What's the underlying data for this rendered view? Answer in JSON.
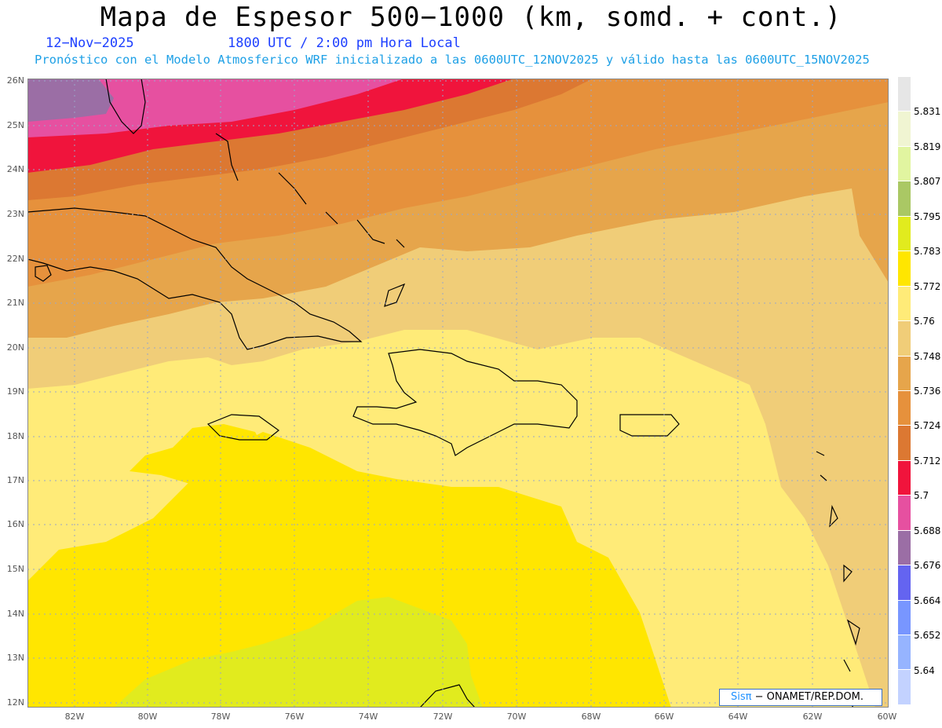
{
  "header": {
    "title": "Mapa de Espesor 500−1000 (km, somd. + cont.)",
    "date": "12−Nov−2025",
    "time": "1800 UTC / 2:00 pm Hora Local",
    "description": "Pronóstico con el Modelo Atmosferico WRF inicializado a las 0600UTC_12NOV2025 y válido hasta las  0600UTC_15NOV2025"
  },
  "map": {
    "lat_labels": [
      "26N",
      "25N",
      "24N",
      "23N",
      "22N",
      "21N",
      "20N",
      "19N",
      "18N",
      "17N",
      "16N",
      "15N",
      "14N",
      "13N",
      "12N"
    ],
    "lon_labels": [
      "82W",
      "80W",
      "78W",
      "76W",
      "74W",
      "72W",
      "70W",
      "68W",
      "66W",
      "64W",
      "62W",
      "60W"
    ],
    "credit_brand": "Sisπ",
    "credit_org": " − ONAMET/REP.DOM."
  },
  "colorbar": {
    "values": [
      "5.831",
      "5.819",
      "5.807",
      "5.795",
      "5.783",
      "5.772",
      "5.76",
      "5.748",
      "5.736",
      "5.724",
      "5.712",
      "5.7",
      "5.688",
      "5.676",
      "5.664",
      "5.652",
      "5.64"
    ],
    "colors": [
      "#e6e6e6",
      "#f0f5d2",
      "#e1f5a0",
      "#aac864",
      "#e1eb1e",
      "#ffe600",
      "#ffeb78",
      "#f0cd78",
      "#e6a54b",
      "#e6913c",
      "#dc7832",
      "#f0143c",
      "#e650a0",
      "#9b6ea5",
      "#6464f0",
      "#7896ff",
      "#96b4ff",
      "#c3d2ff"
    ]
  }
}
